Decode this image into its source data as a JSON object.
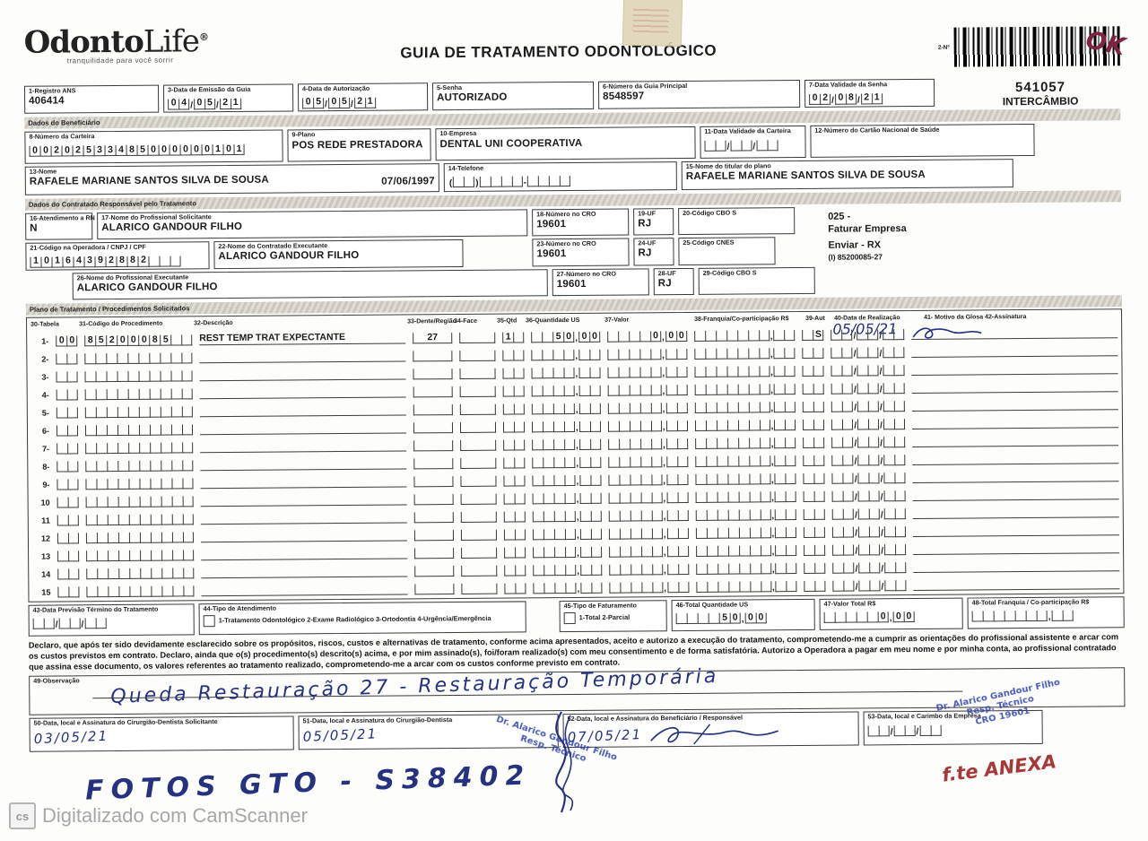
{
  "header": {
    "logo_text_bold": "Odonto",
    "logo_text_light": "Life",
    "logo_reg": "®",
    "logo_tagline": "tranquilidade para você sorrir",
    "title": "GUIA DE TRATAMENTO ODONTOLÓGICO",
    "barcode_label": "2-Nº",
    "barcode_number": "541057",
    "barcode_sub": "INTERCÂMBIO",
    "handwritten_ok": "OK"
  },
  "identificacao": {
    "registro_ans": {
      "label": "1-Registro ANS",
      "value": "406414"
    },
    "data_emissao": {
      "label": "3-Data de Emissão da Guia",
      "value": "04/05/21"
    },
    "data_autorizacao": {
      "label": "4-Data de Autorização",
      "value": "05/05/21"
    },
    "senha": {
      "label": "5-Senha",
      "value": "AUTORIZADO"
    },
    "guia_principal": {
      "label": "6-Número da Guia Principal",
      "value": "8548597"
    },
    "validade_senha": {
      "label": "7-Data Validade da Senha",
      "value": "02/08/21"
    }
  },
  "beneficiario": {
    "section_title": "Dados do Beneficiário",
    "carteira": {
      "label": "8-Número da Carteira",
      "value": "00202533485000000101"
    },
    "plano": {
      "label": "9-Plano",
      "value": "POS REDE PRESTADORA"
    },
    "empresa": {
      "label": "10-Empresa",
      "value": "DENTAL UNI  COOPERATIVA"
    },
    "validade_carteira": {
      "label": "11-Data Validade da Carteira",
      "value": "  /  /  "
    },
    "cartao_nacional": {
      "label": "12-Número do Cartão Nacional de Saúde",
      "value": ""
    },
    "nome": {
      "label": "13-Nome",
      "value": "RAFAELE MARIANE SANTOS SILVA DE SOUSA",
      "nascimento": "07/06/1997"
    },
    "telefone": {
      "label": "14-Telefone",
      "value": "(  )    -    "
    },
    "titular": {
      "label": "15-Nome do titular do plano",
      "value": "RAFAELE MARIANE SANTOS SILVA DE SOUSA"
    }
  },
  "contratado": {
    "section_title": "Dados do Contratado Responsável pelo Tratamento",
    "atendimento_rn": {
      "label": "16-Atendimento a RN",
      "value": "N"
    },
    "prof_solicitante": {
      "label": "17-Nome do Profissional Solicitante",
      "value": "ALARICO GANDOUR FILHO"
    },
    "cro_solicitante": {
      "label": "18-Número no CRO",
      "value": "19601"
    },
    "uf_solicitante": {
      "label": "19-UF",
      "value": "RJ"
    },
    "cbo_solicitante": {
      "label": "20-Código CBO S",
      "value": ""
    },
    "codigo_operadora": {
      "label": "21-Código na Operadora / CNPJ / CPF",
      "value": "10164392882   "
    },
    "contratado_executante": {
      "label": "22-Nome do Contratado Executante",
      "value": "ALARICO GANDOUR FILHO"
    },
    "cro_executante": {
      "label": "23-Número no CRO",
      "value": "19601"
    },
    "uf_executante": {
      "label": "24-UF",
      "value": "RJ"
    },
    "cnes": {
      "label": "25-Código CNES",
      "value": ""
    },
    "prof_executante": {
      "label": "26-Nome do Profissional Executante",
      "value": "ALARICO GANDOUR FILHO"
    },
    "cro_prof_executante": {
      "label": "27-Número no CRO",
      "value": "19601"
    },
    "uf_prof_executante": {
      "label": "28-UF",
      "value": "RJ"
    },
    "cbo_executante": {
      "label": "29-Código CBO S",
      "value": ""
    },
    "nota_025": "025 -",
    "nota_faturar": "Faturar Empresa",
    "nota_enviar": "Enviar - RX",
    "nota_codigo": "(I) 85200085-27"
  },
  "tratamento": {
    "section_title": "Plano de Tratamento / Procedimentos Solicitados",
    "columns": [
      "30-Tabela",
      "31-Código do Procedimento",
      "32-Descrição",
      "33-Dente/Região",
      "34-Face",
      "35-Qtd",
      "36-Quantidade US",
      "37-Valor",
      "38-Franquia/Co-participação R$",
      "39-Aut",
      "40-Data de Realização",
      "41- Motivo da Glosa 42-Assinatura"
    ],
    "empty_row": {
      "num": "",
      "tabela": "  ",
      "codigo": "          ",
      "descricao": "",
      "dente": "",
      "face": "",
      "qtd": "  ",
      "qtd_us": "    ,  ",
      "valor": "     ,  ",
      "franquia": "       ,  ",
      "aut": "  ",
      "data": "  /  /  ",
      "data_hand": "",
      "assinatura": ""
    },
    "rows": [
      {
        "num": "1-",
        "tabela": "00",
        "codigo": "85200085  ",
        "descricao": "REST TEMP TRAT EXPECTANTE",
        "dente": "27",
        "face": "",
        "qtd": "1 ",
        "qtd_us": "  50,00",
        "valor": "    0,00",
        "franquia": "       ,  ",
        "aut": " S",
        "data": "  /  /  ",
        "data_hand": "05/05/21",
        "assinatura": "sig"
      },
      {
        "num": "2-"
      },
      {
        "num": "3-"
      },
      {
        "num": "4-"
      },
      {
        "num": "5-"
      },
      {
        "num": "6-"
      },
      {
        "num": "7-"
      },
      {
        "num": "8-"
      },
      {
        "num": "9-"
      },
      {
        "num": "10"
      },
      {
        "num": "11"
      },
      {
        "num": "12"
      },
      {
        "num": "13"
      },
      {
        "num": "14"
      },
      {
        "num": "15"
      }
    ]
  },
  "rodape": {
    "previsao_termino": {
      "label": "43-Data Previsão Término do Tratamento",
      "value": "  /  /  "
    },
    "tipo_atendimento": {
      "label": "44-Tipo de Atendimento",
      "options": "1-Tratamento Odontológico   2-Exame Radiológico   3-Ortodontia   4-Urgência/Emergência"
    },
    "tipo_faturamento": {
      "label": "45-Tipo de Faturamento",
      "options": "1-Total  2-Parcial"
    },
    "total_qtd_us": {
      "label": "46-Total Quantidade US",
      "value": "    50,00"
    },
    "valor_total": {
      "label": "47-Valor Total R$",
      "value": "     0,00"
    },
    "total_franquia": {
      "label": "48-Total Franquia / Co-participação R$",
      "value": "       ,  "
    },
    "declaracao": "Declaro, que após ter sido devidamente esclarecido sobre os propósitos, riscos, custos e alternativas de tratamento, conforme acima apresentados, aceito e autorizo a execução do tratamento, comprometendo-me a cumprir as orientações do profissional assistente e arcar com os custos previstos em contrato. Declaro, ainda que o(s) procedimento(s) descrito(s) acima, e por mim assinado(s), foi/foram realizado(s) com meu consentimento e de forma satisfatória. Autorizo a Operadora a pagar em meu nome e por minha conta, ao profissional contratado que assina esse documento, os valores referentes ao tratamento realizado, comprometendo-me a arcar com os custos conforme previsto em contrato."
  },
  "observacao": {
    "label": "49-Observação",
    "texto_manuscrito": "Queda Restauração 27 - Restauração Temporária"
  },
  "assinaturas": {
    "solicitante": {
      "label": "50-Data, local e Assinatura do Cirurgião-Dentista Solicitante",
      "data_manuscrita": "03/05/21"
    },
    "dentista": {
      "label": "51-Data, local e Assinatura do Cirurgião-Dentista",
      "data_manuscrita": "05/05/21"
    },
    "beneficiario": {
      "label": "52-Data, local e Assinatura do Beneficiário / Responsável",
      "data_manuscrita": "07/05/21"
    },
    "empresa": {
      "label": "53-Data, local e Carimbo da Empresa",
      "value": "  /  /  "
    }
  },
  "anotacoes": {
    "fotos": "FOTOS GTO - S38402",
    "anexo": "f.te ANEXA",
    "carimbo_linha1": "Dr. Alarico Gandour Filho",
    "carimbo_linha2": "Resp. Técnico",
    "carimbo_linha3": "CRO 19601"
  },
  "scanner_footer": {
    "icon": "cs",
    "text": "Digitalizado com CamScanner"
  }
}
